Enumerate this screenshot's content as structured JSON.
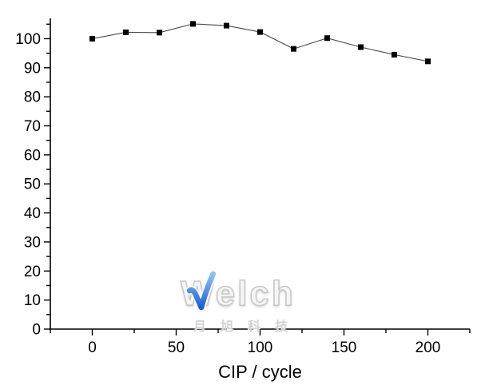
{
  "chart_data": {
    "type": "line",
    "title": "",
    "xlabel": "CIP / cycle",
    "ylabel": "",
    "x": [
      0,
      20,
      40,
      60,
      80,
      100,
      120,
      140,
      160,
      180,
      200
    ],
    "values": [
      100,
      102.2,
      102.1,
      105.1,
      104.5,
      102.3,
      96.5,
      100.2,
      97.1,
      94.5,
      92.2
    ],
    "xlim": [
      -25,
      225
    ],
    "ylim": [
      0,
      107
    ],
    "x_ticks_major": [
      0,
      50,
      100,
      150,
      200
    ],
    "x_ticks_minor": [
      -25,
      25,
      75,
      125,
      175,
      225
    ],
    "y_ticks_major": [
      0,
      10,
      20,
      30,
      40,
      50,
      60,
      70,
      80,
      90,
      100
    ],
    "y_ticks_minor": [
      5,
      15,
      25,
      35,
      45,
      55,
      65,
      75,
      85,
      95,
      105
    ],
    "grid": false,
    "legend": null,
    "marker": "filled-square",
    "marker_size": 7,
    "marker_color": "#000000",
    "line_color": "#4a4a4a",
    "axis_color": "#000000",
    "tick_label_color": "#000000"
  },
  "watermark": {
    "brand": "Welch",
    "subtitle": "月旭科技",
    "check_color_top": "#8fc3f2",
    "check_color_bottom": "#1b5fd0"
  }
}
